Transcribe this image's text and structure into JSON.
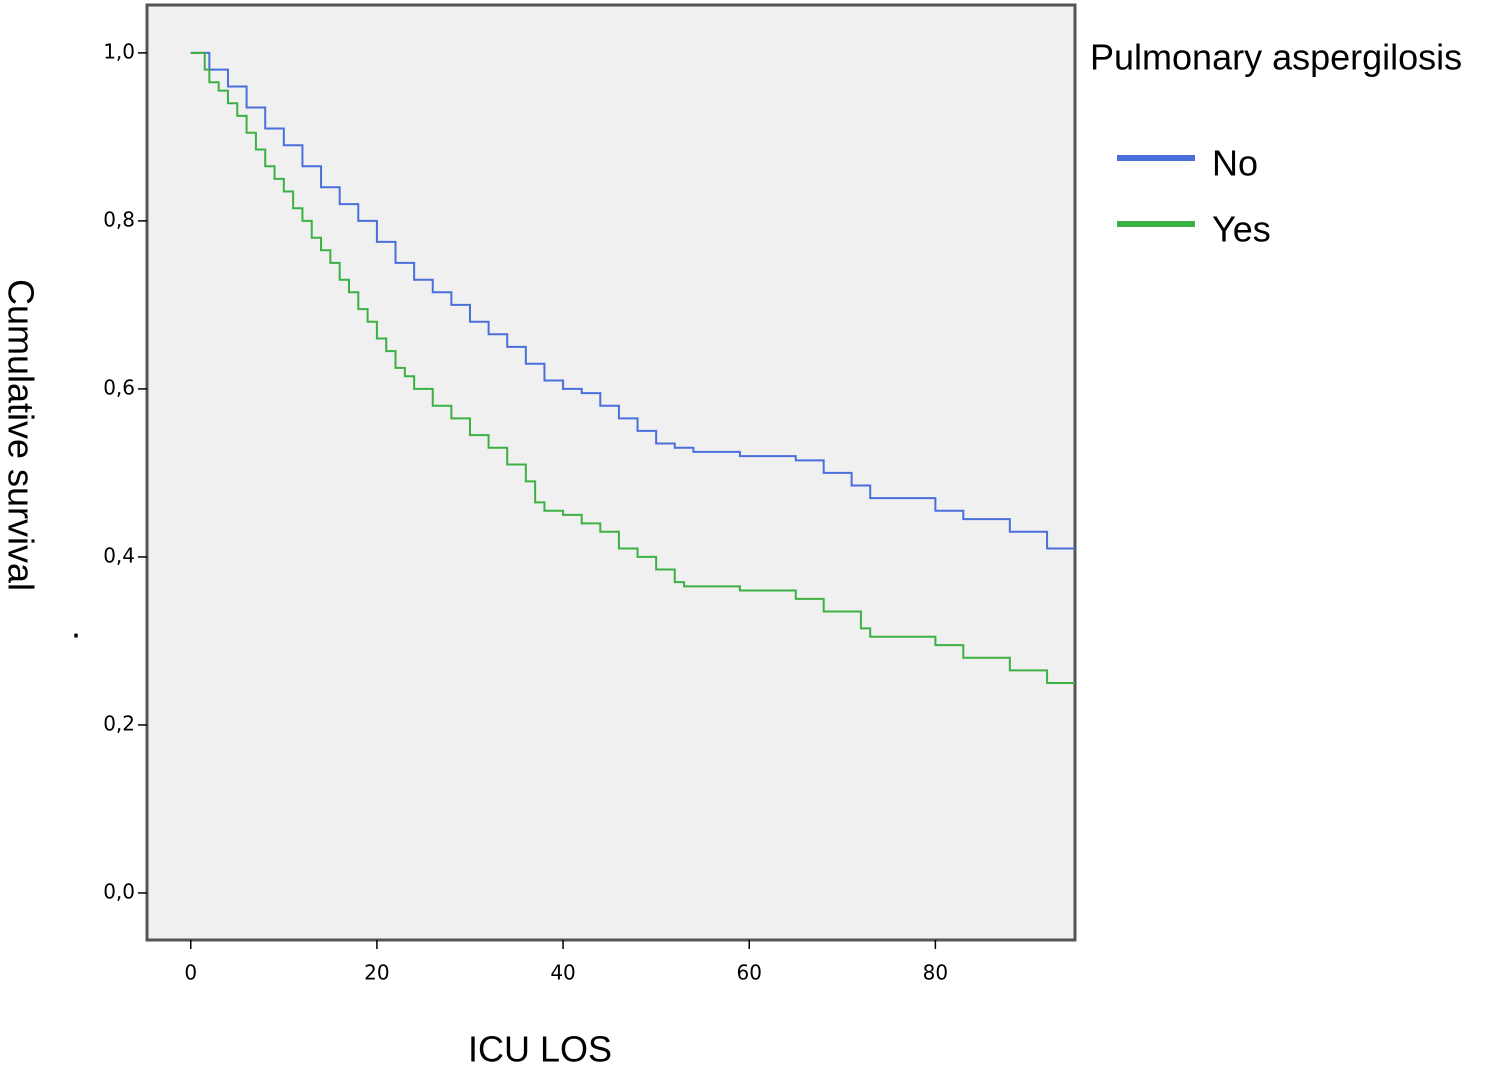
{
  "chart_data": {
    "type": "step",
    "x_label": "ICU LOS",
    "y_label": "Cumulative survival",
    "annotation": ".",
    "legend_title": "Pulmonary aspergilosis",
    "legend": "right",
    "xlim": [
      -4.7,
      95
    ],
    "ylim": [
      -0.056,
      1.057
    ],
    "xticks": [
      0,
      20,
      40,
      60,
      80
    ],
    "yticks": [
      {
        "value": 0,
        "label": "0,0"
      },
      {
        "value": 0.2,
        "label": "0,2"
      },
      {
        "value": 0.4,
        "label": "0,4"
      },
      {
        "value": 0.6,
        "label": "0,6"
      },
      {
        "value": 0.8,
        "label": "0,8"
      },
      {
        "value": 1,
        "label": "1,0"
      }
    ],
    "series": [
      {
        "name": "No",
        "color": "#4a6fdc",
        "x": [
          0,
          2,
          4,
          6,
          8,
          10,
          12,
          14,
          16,
          18,
          20,
          22,
          24,
          26,
          28,
          30,
          32,
          34,
          36,
          38,
          40,
          42,
          44,
          46,
          48,
          50,
          52,
          54,
          59,
          65,
          68,
          71,
          73,
          80,
          83,
          88,
          92,
          95
        ],
        "values": [
          1.0,
          0.98,
          0.96,
          0.935,
          0.91,
          0.89,
          0.865,
          0.84,
          0.82,
          0.8,
          0.775,
          0.75,
          0.73,
          0.715,
          0.7,
          0.68,
          0.665,
          0.65,
          0.63,
          0.61,
          0.6,
          0.595,
          0.58,
          0.565,
          0.55,
          0.535,
          0.53,
          0.525,
          0.52,
          0.515,
          0.5,
          0.485,
          0.47,
          0.455,
          0.445,
          0.43,
          0.41,
          0.41
        ]
      },
      {
        "name": "Yes",
        "color": "#3cb043",
        "x": [
          0,
          1.5,
          2,
          3,
          4,
          5,
          6,
          7,
          8,
          9,
          10,
          11,
          12,
          13,
          14,
          15,
          16,
          17,
          18,
          19,
          20,
          21,
          22,
          23,
          24,
          26,
          28,
          30,
          32,
          34,
          36,
          37,
          38,
          40,
          42,
          44,
          46,
          48,
          50,
          52,
          53,
          59,
          65,
          68,
          72,
          73,
          80,
          83,
          88,
          92,
          95
        ],
        "values": [
          1.0,
          0.98,
          0.965,
          0.955,
          0.94,
          0.925,
          0.905,
          0.885,
          0.865,
          0.85,
          0.835,
          0.815,
          0.8,
          0.78,
          0.765,
          0.75,
          0.73,
          0.715,
          0.695,
          0.68,
          0.66,
          0.645,
          0.625,
          0.615,
          0.6,
          0.58,
          0.565,
          0.545,
          0.53,
          0.51,
          0.49,
          0.465,
          0.455,
          0.45,
          0.44,
          0.43,
          0.41,
          0.4,
          0.385,
          0.37,
          0.365,
          0.36,
          0.35,
          0.335,
          0.315,
          0.305,
          0.295,
          0.28,
          0.265,
          0.25,
          0.25
        ]
      }
    ]
  }
}
